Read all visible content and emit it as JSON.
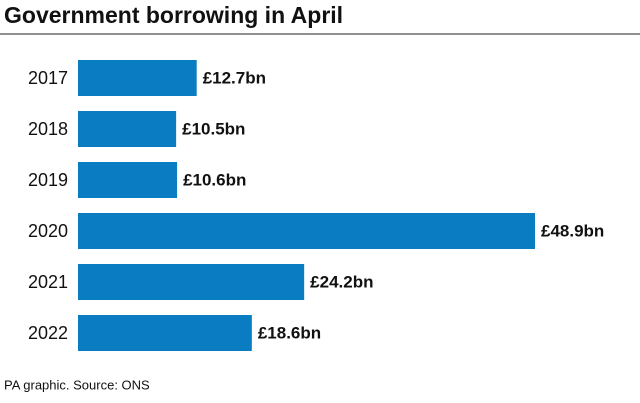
{
  "chart_data": {
    "type": "hbar",
    "title": "Government borrowing in April",
    "categories": [
      "2017",
      "2018",
      "2019",
      "2020",
      "2021",
      "2022"
    ],
    "values": [
      12.7,
      10.5,
      10.6,
      48.9,
      24.2,
      18.6
    ],
    "value_labels": [
      "£12.7bn",
      "£10.5bn",
      "£10.6bn",
      "£48.9bn",
      "£24.2bn",
      "£18.6bn"
    ],
    "color": "#0a7dc2",
    "source": "PA graphic. Source: ONS"
  }
}
